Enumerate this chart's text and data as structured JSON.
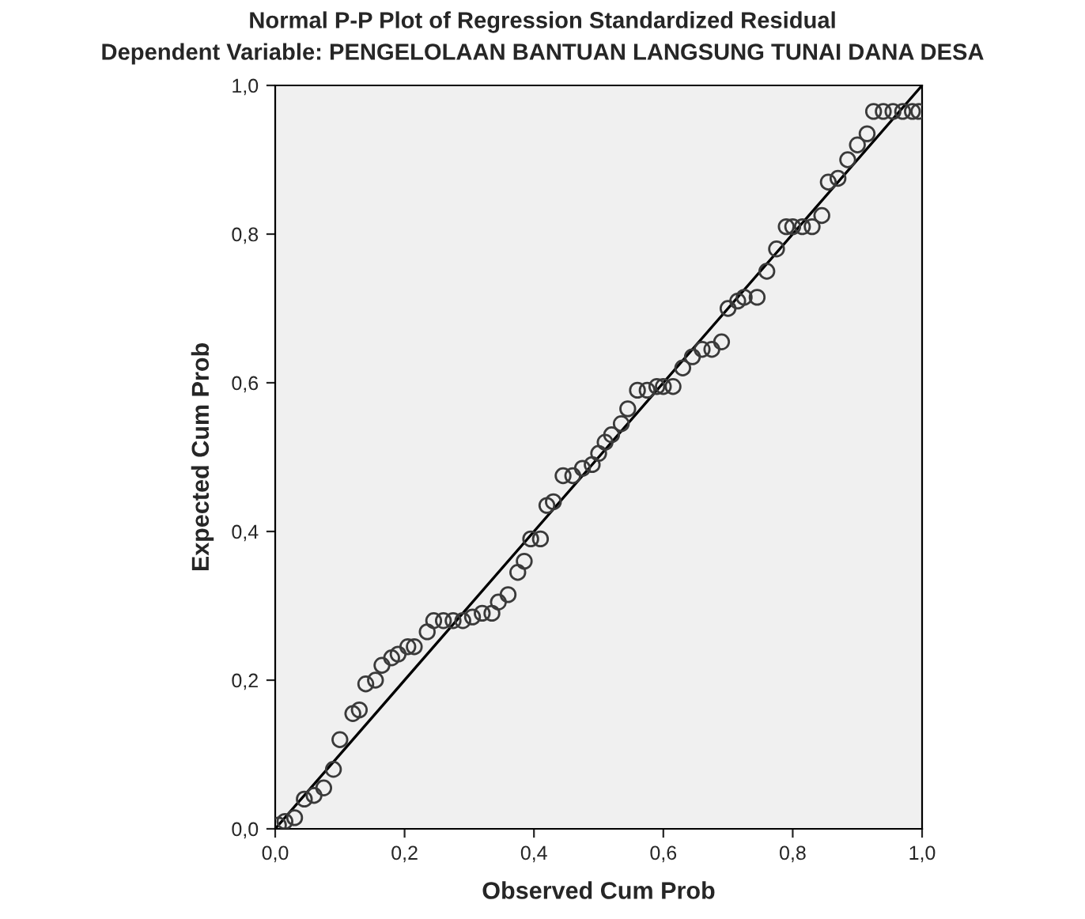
{
  "chart_data": {
    "type": "scatter",
    "title": "Normal P-P Plot of Regression Standardized Residual",
    "subtitle": "Dependent Variable: PENGELOLAAN BANTUAN LANGSUNG TUNAI DANA DESA",
    "xlabel": "Observed Cum Prob",
    "ylabel": "Expected Cum Prob",
    "series": [
      {
        "color": "#3a3a3a",
        "x": [
          0.005,
          0.015,
          0.03,
          0.045,
          0.06,
          0.075,
          0.09,
          0.1,
          0.12,
          0.13,
          0.14,
          0.155,
          0.165,
          0.18,
          0.19,
          0.205,
          0.215,
          0.235,
          0.245,
          0.26,
          0.275,
          0.29,
          0.305,
          0.32,
          0.335,
          0.345,
          0.36,
          0.375,
          0.385,
          0.395,
          0.41,
          0.42,
          0.43,
          0.445,
          0.46,
          0.475,
          0.49,
          0.5,
          0.51,
          0.52,
          0.535,
          0.545,
          0.56,
          0.575,
          0.59,
          0.6,
          0.615,
          0.63,
          0.645,
          0.66,
          0.675,
          0.69,
          0.7,
          0.715,
          0.725,
          0.745,
          0.76,
          0.775,
          0.79,
          0.8,
          0.815,
          0.83,
          0.845,
          0.855,
          0.87,
          0.885,
          0.9,
          0.915,
          0.925,
          0.94,
          0.955,
          0.97,
          0.985,
          0.995
        ],
        "values": [
          0.005,
          0.01,
          0.015,
          0.04,
          0.045,
          0.055,
          0.08,
          0.12,
          0.155,
          0.16,
          0.195,
          0.2,
          0.22,
          0.23,
          0.235,
          0.245,
          0.245,
          0.265,
          0.28,
          0.28,
          0.28,
          0.28,
          0.285,
          0.29,
          0.29,
          0.305,
          0.315,
          0.345,
          0.36,
          0.39,
          0.39,
          0.435,
          0.44,
          0.475,
          0.475,
          0.485,
          0.49,
          0.505,
          0.52,
          0.53,
          0.545,
          0.565,
          0.59,
          0.59,
          0.595,
          0.595,
          0.595,
          0.62,
          0.635,
          0.645,
          0.645,
          0.655,
          0.7,
          0.71,
          0.715,
          0.715,
          0.75,
          0.78,
          0.81,
          0.81,
          0.81,
          0.81,
          0.825,
          0.87,
          0.875,
          0.9,
          0.92,
          0.935,
          0.965,
          0.965,
          0.965,
          0.965,
          0.965,
          0.965
        ]
      },
      {
        "type": "line",
        "marker": "none",
        "color": "#000000",
        "x": [
          0,
          1
        ],
        "values": [
          0,
          1
        ]
      }
    ],
    "xlim": [
      0,
      1
    ],
    "ylim": [
      0,
      1
    ],
    "xticks": [
      {
        "value": 0,
        "label": "0,0"
      },
      {
        "value": 0.2,
        "label": "0,2"
      },
      {
        "value": 0.4,
        "label": "0,4"
      },
      {
        "value": 0.6,
        "label": "0,6"
      },
      {
        "value": 0.8,
        "label": "0,8"
      },
      {
        "value": 1,
        "label": "1,0"
      }
    ],
    "yticks": [
      {
        "value": 0,
        "label": "0,0"
      },
      {
        "value": 0.2,
        "label": "0,2"
      },
      {
        "value": 0.4,
        "label": "0,4"
      },
      {
        "value": 0.6,
        "label": "0,6"
      },
      {
        "value": 0.8,
        "label": "0,8"
      },
      {
        "value": 1,
        "label": "1,0"
      }
    ],
    "grid": false,
    "legend": false,
    "marker": "circle"
  }
}
